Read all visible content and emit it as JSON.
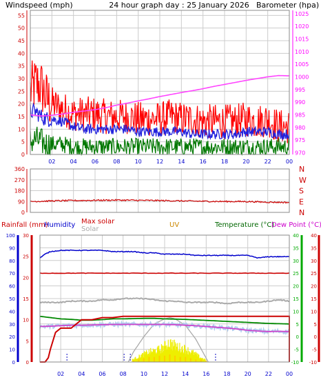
{
  "header": {
    "title": "24 hour graph day : 25 January 2026",
    "windspeed_label": "Windspeed (mph)",
    "barometer_label": "Barometer (hpa)"
  },
  "colors": {
    "windspeed": "#cc0000",
    "barometer": "#ff00ff",
    "title": "#000000",
    "gust": "#ff0000",
    "avg": "#2222dd",
    "min": "#007700",
    "baro_line": "#ff44ff",
    "grid": "#cccccc",
    "direction": "#cc0000",
    "dir_axis": "#cc0000",
    "rain": "#cc0000",
    "humidity": "#0000cc",
    "maxsolar": "#cc0000",
    "solar": "#aaaaaa",
    "uv": "#cc8800",
    "temperature": "#006600",
    "dewpoint": "#cc00cc",
    "dew_line": "#cc44cc",
    "temp_line": "#008800",
    "dew_scatter": "#b0ccee",
    "rain_line": "#cc0000",
    "axis_left": "#0000cc",
    "axis_right_green": "#00aa00",
    "axis_right_red": "#cc0000",
    "solar_fill": "#eeee00",
    "uv_bars": "#ffcc00",
    "time_marks": "#3333cc"
  },
  "chart_data": [
    {
      "type": "line",
      "title": "24 hour graph day : 25 January 2026",
      "x_ticks": [
        "02",
        "04",
        "06",
        "08",
        "10",
        "12",
        "14",
        "16",
        "18",
        "20",
        "22",
        "00"
      ],
      "xlim": [
        0,
        24
      ],
      "y_left": {
        "label": "Windspeed (mph)",
        "ticks": [
          "0",
          "5",
          "10",
          "15",
          "20",
          "25",
          "30",
          "35",
          "40",
          "45",
          "50",
          "55"
        ],
        "ylim": [
          0,
          57
        ]
      },
      "y_right": {
        "label": "Barometer (hpa)",
        "ticks": [
          "970",
          "975",
          "980",
          "985",
          "990",
          "995",
          "1000",
          "1005",
          "1010",
          "1015",
          "1020",
          "1025"
        ],
        "ylim": [
          969.3,
          1026.3
        ]
      },
      "grid": true,
      "series": [
        {
          "kind": "gust",
          "x": [
            0,
            0.5,
            1,
            1.5,
            2,
            3,
            4,
            5,
            6,
            7,
            8,
            9,
            10,
            11,
            12,
            13,
            14,
            15,
            16,
            17,
            18,
            19,
            20,
            21,
            22,
            23,
            24
          ],
          "values": [
            25,
            28,
            27,
            22,
            20,
            18,
            16,
            16,
            16,
            15,
            15,
            15,
            14,
            14,
            14,
            15,
            14,
            14,
            13,
            13,
            13,
            13,
            14,
            13,
            14,
            11,
            11
          ]
        },
        {
          "kind": "average",
          "x": [
            0,
            0.5,
            1,
            1.5,
            2,
            3,
            4,
            5,
            6,
            7,
            8,
            9,
            10,
            11,
            12,
            13,
            14,
            15,
            16,
            17,
            18,
            19,
            20,
            21,
            22,
            23,
            24
          ],
          "values": [
            17,
            17,
            15,
            14,
            14,
            13,
            11,
            10,
            10,
            10,
            10,
            10,
            9,
            9,
            9,
            9,
            9,
            8,
            8,
            8,
            8,
            8,
            9,
            9,
            9,
            8,
            8
          ]
        },
        {
          "kind": "minimum",
          "x": [
            0,
            0.5,
            1,
            1.5,
            2,
            3,
            4,
            5,
            6,
            7,
            8,
            9,
            10,
            11,
            12,
            13,
            14,
            15,
            16,
            17,
            18,
            19,
            20,
            21,
            22,
            23,
            24
          ],
          "values": [
            5,
            6,
            5,
            4,
            4,
            4,
            3,
            3,
            3,
            3,
            3,
            3,
            3,
            3,
            3,
            3,
            3,
            3,
            3,
            3,
            3,
            3,
            3,
            3,
            3,
            3,
            3
          ]
        },
        {
          "kind": "barometer",
          "x": [
            0,
            1,
            2,
            3,
            4,
            5,
            6,
            7,
            8,
            9,
            10,
            11,
            12,
            13,
            14,
            15,
            16,
            17,
            18,
            19,
            20,
            21,
            22,
            23,
            24
          ],
          "values": [
            985,
            984.5,
            984.8,
            985.3,
            986,
            986.5,
            987,
            987.8,
            988.8,
            989.6,
            990.5,
            991.3,
            992.2,
            993,
            993.8,
            994.5,
            995.3,
            996.2,
            997,
            997.8,
            998.6,
            999.3,
            1000,
            1000.5,
            1000.4
          ]
        }
      ]
    },
    {
      "type": "scatter",
      "x_ticks": [
        "02",
        "04",
        "06",
        "08",
        "10",
        "12",
        "14",
        "16",
        "18",
        "20",
        "22",
        "00"
      ],
      "xlim": [
        0,
        24
      ],
      "y_left": {
        "ticks": [
          "0",
          "90",
          "180",
          "270",
          "360"
        ],
        "ylim": [
          0,
          360
        ]
      },
      "y_right": {
        "ticks": [
          "N",
          "E",
          "S",
          "W",
          "N"
        ]
      },
      "grid": true,
      "series": [
        {
          "kind": "direction",
          "x": [
            0,
            2,
            4,
            6,
            8,
            10,
            12,
            14,
            16,
            18,
            20,
            22,
            24
          ],
          "values": [
            90,
            95,
            98,
            100,
            102,
            100,
            98,
            95,
            92,
            90,
            90,
            85,
            82
          ]
        }
      ]
    },
    {
      "type": "line",
      "x_ticks": [
        "02",
        "04",
        "06",
        "08",
        "10",
        "12",
        "14",
        "16",
        "18",
        "20",
        "22",
        "00"
      ],
      "xlim": [
        0,
        24
      ],
      "legend": [
        "Rainfall (mm)",
        "Humidity",
        "Max solar",
        "Solar",
        "UV",
        "Temperature (°C)",
        "Dew Point (°C)"
      ],
      "y_axes": {
        "humidity": {
          "label": "Humidity",
          "ticks": [
            "0",
            "10",
            "20",
            "30",
            "40",
            "50",
            "60",
            "70",
            "80",
            "90",
            "100"
          ],
          "ylim": [
            0,
            100
          ]
        },
        "rainfall": {
          "label": "Rainfall (mm)",
          "ticks": [
            "0",
            "5",
            "10",
            "15",
            "20",
            "25",
            "30"
          ],
          "ylim": [
            0,
            30
          ]
        },
        "temperature": {
          "label": "Temperature (°C)",
          "ticks": [
            "-10",
            "-5",
            "0",
            "5",
            "10",
            "15",
            "20",
            "25",
            "30",
            "35",
            "40"
          ],
          "ylim": [
            -10,
            40
          ]
        },
        "dewpoint": {
          "label": "Dew Point (°C)",
          "ticks": [
            "-10",
            "-5",
            "0",
            "5",
            "10",
            "15",
            "20",
            "25",
            "30",
            "35",
            "40"
          ],
          "ylim": [
            -10,
            40
          ]
        }
      },
      "grid": true,
      "series": [
        {
          "kind": "humidity",
          "x": [
            0,
            0.5,
            1,
            2,
            3,
            4,
            5,
            6,
            7,
            8,
            9,
            10,
            11,
            12,
            13,
            14,
            15,
            16,
            17,
            18,
            19,
            20,
            20.5,
            21,
            22,
            23,
            24
          ],
          "values": [
            82,
            85,
            87,
            88,
            88,
            88,
            88,
            88,
            87,
            87,
            87,
            86,
            86,
            85,
            85,
            85,
            84,
            84,
            84,
            84,
            84,
            84,
            83,
            82,
            83,
            83,
            83
          ]
        },
        {
          "kind": "maxsolar_scale",
          "x": [
            0,
            24
          ],
          "values": [
            21,
            21
          ]
        },
        {
          "kind": "solar_trace",
          "x": [
            0,
            2,
            3,
            4,
            5,
            6,
            7,
            8,
            9,
            10,
            11,
            12,
            13,
            14,
            15,
            16,
            17,
            18,
            19,
            20,
            21,
            22,
            23,
            24
          ],
          "values": [
            47,
            47,
            48,
            48,
            48,
            49,
            49,
            50,
            50,
            50,
            49,
            48,
            48,
            47,
            47,
            47,
            47,
            46,
            47,
            47,
            47,
            48,
            49,
            48
          ]
        },
        {
          "kind": "maxsolar_curve",
          "x": [
            8.5,
            9,
            10,
            11,
            12,
            12.5,
            13,
            14,
            15,
            16.2
          ],
          "values": [
            0,
            8,
            20,
            30,
            34,
            35,
            34,
            29,
            18,
            0
          ]
        },
        {
          "kind": "solar_bars",
          "x": [
            8.9,
            9.4,
            9.9,
            10.4,
            10.9,
            11.4,
            11.9,
            12.4,
            12.9,
            13.4,
            13.9,
            14.4,
            14.9,
            15.4,
            15.9
          ],
          "values": [
            2,
            4,
            6,
            8,
            9,
            10,
            12,
            16,
            14,
            12,
            11,
            9,
            7,
            4,
            2
          ]
        },
        {
          "kind": "uv_bars",
          "x": [
            9,
            9.5,
            10,
            10.5,
            11,
            11.5,
            12,
            12.5,
            13,
            13.5,
            14,
            14.5,
            15,
            15.5,
            16
          ],
          "values": [
            1,
            2,
            3,
            4,
            4,
            5,
            5,
            6,
            5,
            4,
            4,
            3,
            2,
            2,
            1
          ]
        },
        {
          "kind": "rain_mm",
          "x": [
            0,
            0.5,
            0.8,
            1,
            1.5,
            2,
            3,
            4,
            5,
            6,
            7,
            8,
            24
          ],
          "values": [
            0,
            0,
            1,
            3,
            7,
            8,
            8,
            10,
            10,
            10.5,
            10.5,
            10.8,
            10.8
          ]
        },
        {
          "kind": "temperature_c",
          "x": [
            0,
            1,
            2,
            3,
            4,
            5,
            6,
            7,
            8,
            9,
            10,
            11,
            12,
            13,
            14,
            15,
            16,
            17,
            18,
            19,
            20,
            21,
            22,
            23,
            24
          ],
          "values": [
            8,
            7.5,
            7,
            6.8,
            6.5,
            6.5,
            6.7,
            7,
            7,
            7.1,
            7.2,
            7.2,
            7,
            6.9,
            6.8,
            6.6,
            6.4,
            6.2,
            6,
            5.8,
            5.6,
            5.4,
            5.2,
            5.1,
            5
          ]
        },
        {
          "kind": "dewpoint_c",
          "x": [
            0,
            1,
            2,
            3,
            4,
            5,
            6,
            7,
            8,
            9,
            10,
            11,
            12,
            13,
            14,
            15,
            16,
            17,
            18,
            19,
            20,
            21,
            22,
            23,
            24
          ],
          "values": [
            4,
            4.1,
            4.3,
            4.5,
            4.5,
            4.6,
            4.7,
            4.8,
            4.8,
            4.8,
            4.8,
            4.8,
            4.8,
            4.7,
            4.5,
            4.3,
            4,
            3.7,
            3.4,
            3,
            2.5,
            2.2,
            2,
            2.1,
            2
          ]
        },
        {
          "kind": "daylight_markers",
          "x": [
            2.6,
            8.1,
            8.7,
            16.9
          ],
          "values": [
            1,
            1,
            1,
            1
          ]
        }
      ]
    }
  ]
}
